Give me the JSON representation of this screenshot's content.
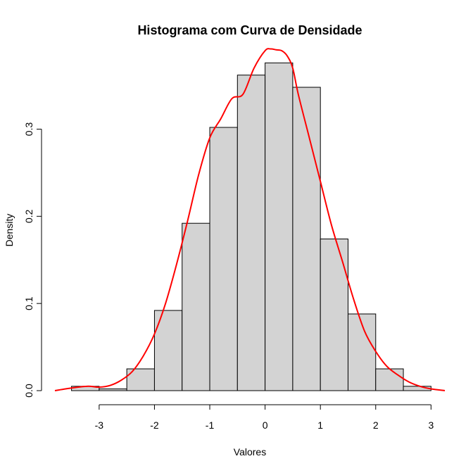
{
  "chart_data": {
    "type": "bar",
    "title": "Histograma com Curva de Densidade",
    "xlabel": "Valores",
    "ylabel": "Density",
    "xlim": [
      -3.8,
      3.25
    ],
    "ylim": [
      0,
      0.39
    ],
    "x_ticks": [
      -3,
      -2,
      -1,
      0,
      1,
      2,
      3
    ],
    "y_ticks": [
      0.0,
      0.1,
      0.2,
      0.3
    ],
    "y_tick_labels": [
      "0.0",
      "0.1",
      "0.2",
      "0.3"
    ],
    "bins": [
      {
        "from": -3.5,
        "to": -3.0,
        "density": 0.005
      },
      {
        "from": -3.0,
        "to": -2.5,
        "density": 0.002
      },
      {
        "from": -2.5,
        "to": -2.0,
        "density": 0.025
      },
      {
        "from": -2.0,
        "to": -1.5,
        "density": 0.092
      },
      {
        "from": -1.5,
        "to": -1.0,
        "density": 0.192
      },
      {
        "from": -1.0,
        "to": -0.5,
        "density": 0.302
      },
      {
        "from": -0.5,
        "to": 0.0,
        "density": 0.362
      },
      {
        "from": 0.0,
        "to": 0.5,
        "density": 0.376
      },
      {
        "from": 0.5,
        "to": 1.0,
        "density": 0.348
      },
      {
        "from": 1.0,
        "to": 1.5,
        "density": 0.174
      },
      {
        "from": 1.5,
        "to": 2.0,
        "density": 0.088
      },
      {
        "from": 2.0,
        "to": 2.5,
        "density": 0.025
      },
      {
        "from": 2.5,
        "to": 3.0,
        "density": 0.005
      }
    ],
    "density_curve": {
      "x": [
        -3.8,
        -3.5,
        -3.2,
        -3.0,
        -2.8,
        -2.6,
        -2.4,
        -2.2,
        -2.0,
        -1.8,
        -1.6,
        -1.4,
        -1.2,
        -1.0,
        -0.8,
        -0.6,
        -0.4,
        -0.2,
        0.0,
        0.1,
        0.2,
        0.3,
        0.4,
        0.5,
        0.6,
        0.8,
        1.0,
        1.2,
        1.4,
        1.6,
        1.8,
        2.0,
        2.2,
        2.4,
        2.6,
        2.8,
        3.0,
        3.25
      ],
      "y": [
        0.0,
        0.003,
        0.005,
        0.004,
        0.006,
        0.012,
        0.022,
        0.04,
        0.065,
        0.1,
        0.145,
        0.195,
        0.248,
        0.29,
        0.312,
        0.335,
        0.34,
        0.37,
        0.39,
        0.392,
        0.391,
        0.39,
        0.384,
        0.37,
        0.34,
        0.29,
        0.24,
        0.19,
        0.148,
        0.105,
        0.068,
        0.045,
        0.028,
        0.018,
        0.01,
        0.005,
        0.002,
        0.0
      ]
    },
    "colors": {
      "bar_fill": "#d3d3d3",
      "bar_stroke": "#000000",
      "curve": "#ff0000"
    },
    "grid": false,
    "legend": "none"
  }
}
